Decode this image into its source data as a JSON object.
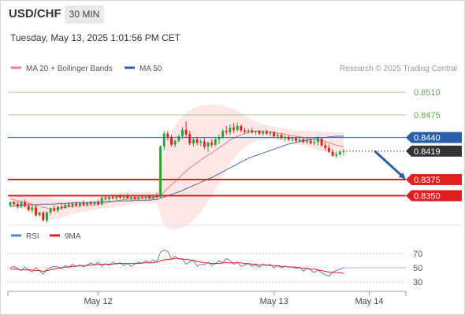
{
  "header": {
    "symbol": "USD/CHF",
    "timeframe": "30 MIN",
    "datetime": "Tuesday, May 13, 2025 1:01:56 PM CET"
  },
  "colors": {
    "bull": "#2e9e3a",
    "bear": "#e02020",
    "ma20": "#f08080",
    "band_fill": "#fde2e2",
    "ma50": "#4a6fa5",
    "rsi": "#5b7fd6",
    "rsi_ma": "#e02020",
    "target": "#6aa84f",
    "support": "#e02020",
    "pivot": "#2c5fa8",
    "arrow": "#2c5fa8",
    "price_box": "#333333"
  },
  "chart_data": [
    {
      "type": "candlestick",
      "legend": [
        {
          "name": "MA 20 + Bollinger Bands",
          "color": "#f08080"
        },
        {
          "name": "MA 50",
          "color": "#2c5fa8"
        }
      ],
      "watermark": "Research © 2025 Trading Central",
      "ylim": [
        0.8308,
        0.8537
      ],
      "x_ticks": [
        {
          "label": "May 12",
          "index": 24
        },
        {
          "label": "May 13",
          "index": 72
        },
        {
          "label": "May 14",
          "index": 98
        }
      ],
      "x_range": [
        0,
        108
      ],
      "levels": [
        {
          "value": 0.851,
          "label": "0.8510",
          "kind": "target"
        },
        {
          "value": 0.8475,
          "label": "0.8475",
          "kind": "target"
        },
        {
          "value": 0.844,
          "label": "0.8440",
          "kind": "pivot"
        },
        {
          "value": 0.8375,
          "label": "0.8375",
          "kind": "support"
        },
        {
          "value": 0.835,
          "label": "0.8350",
          "kind": "support"
        }
      ],
      "last_price": {
        "value": 0.8419,
        "label": "0.8419"
      },
      "forecast_arrow": {
        "from_index": 99.5,
        "from_value": 0.8419,
        "to_index": 108,
        "to_value": 0.8375
      },
      "candles": [
        [
          0.8335,
          0.8341,
          0.8332,
          0.834
        ],
        [
          0.834,
          0.8342,
          0.8335,
          0.8337
        ],
        [
          0.8337,
          0.8341,
          0.833,
          0.8333
        ],
        [
          0.8333,
          0.8342,
          0.8331,
          0.834
        ],
        [
          0.834,
          0.8344,
          0.8332,
          0.8334
        ],
        [
          0.8334,
          0.8338,
          0.8326,
          0.8328
        ],
        [
          0.8328,
          0.8336,
          0.8324,
          0.8332
        ],
        [
          0.8332,
          0.8336,
          0.8318,
          0.832
        ],
        [
          0.832,
          0.8325,
          0.8318,
          0.8324
        ],
        [
          0.8324,
          0.8326,
          0.831,
          0.8312
        ],
        [
          0.8312,
          0.8326,
          0.8308,
          0.8324
        ],
        [
          0.8324,
          0.8332,
          0.832,
          0.833
        ],
        [
          0.833,
          0.8335,
          0.8325,
          0.8327
        ],
        [
          0.8327,
          0.8335,
          0.8324,
          0.8333
        ],
        [
          0.8333,
          0.8338,
          0.8328,
          0.8331
        ],
        [
          0.8331,
          0.8338,
          0.833,
          0.8336
        ],
        [
          0.8336,
          0.834,
          0.8332,
          0.8334
        ],
        [
          0.8334,
          0.834,
          0.8331,
          0.8338
        ],
        [
          0.8338,
          0.8341,
          0.8333,
          0.8335
        ],
        [
          0.8335,
          0.8341,
          0.8332,
          0.8339
        ],
        [
          0.8339,
          0.8343,
          0.8334,
          0.8336
        ],
        [
          0.8336,
          0.8341,
          0.8333,
          0.8339
        ],
        [
          0.8339,
          0.8342,
          0.8336,
          0.8337
        ],
        [
          0.8337,
          0.8342,
          0.8335,
          0.834
        ],
        [
          0.834,
          0.8343,
          0.8335,
          0.8337
        ],
        [
          0.8337,
          0.835,
          0.8335,
          0.8347
        ],
        [
          0.8347,
          0.8351,
          0.8343,
          0.8345
        ],
        [
          0.8345,
          0.835,
          0.8342,
          0.8348
        ],
        [
          0.8348,
          0.8351,
          0.8344,
          0.8346
        ],
        [
          0.8346,
          0.8351,
          0.8343,
          0.8349
        ],
        [
          0.8349,
          0.8352,
          0.8345,
          0.8347
        ],
        [
          0.8347,
          0.8352,
          0.8344,
          0.835
        ],
        [
          0.835,
          0.8353,
          0.8345,
          0.8346
        ],
        [
          0.8346,
          0.8351,
          0.8342,
          0.8348
        ],
        [
          0.8348,
          0.8351,
          0.8344,
          0.8345
        ],
        [
          0.8345,
          0.835,
          0.8343,
          0.8348
        ],
        [
          0.8348,
          0.8351,
          0.8345,
          0.8347
        ],
        [
          0.8347,
          0.8351,
          0.8344,
          0.8349
        ],
        [
          0.8349,
          0.8352,
          0.8344,
          0.8346
        ],
        [
          0.8346,
          0.8352,
          0.8344,
          0.835
        ],
        [
          0.835,
          0.8354,
          0.8346,
          0.8348
        ],
        [
          0.8348,
          0.8428,
          0.8346,
          0.8426
        ],
        [
          0.8426,
          0.845,
          0.842,
          0.8446
        ],
        [
          0.8446,
          0.845,
          0.8435,
          0.8441
        ],
        [
          0.8441,
          0.8444,
          0.8426,
          0.8429
        ],
        [
          0.8429,
          0.8437,
          0.8425,
          0.8435
        ],
        [
          0.8435,
          0.8445,
          0.8432,
          0.8442
        ],
        [
          0.8442,
          0.8456,
          0.8438,
          0.8452
        ],
        [
          0.8452,
          0.8465,
          0.844,
          0.8445
        ],
        [
          0.8445,
          0.845,
          0.8428,
          0.8431
        ],
        [
          0.8431,
          0.844,
          0.8426,
          0.8437
        ],
        [
          0.8437,
          0.8441,
          0.8428,
          0.8432
        ],
        [
          0.8432,
          0.8437,
          0.8426,
          0.8434
        ],
        [
          0.8434,
          0.844,
          0.8422,
          0.8426
        ],
        [
          0.8426,
          0.8434,
          0.8418,
          0.8432
        ],
        [
          0.8432,
          0.8437,
          0.8425,
          0.8429
        ],
        [
          0.8429,
          0.844,
          0.8426,
          0.8437
        ],
        [
          0.8437,
          0.8445,
          0.843,
          0.8441
        ],
        [
          0.8441,
          0.8453,
          0.8438,
          0.845
        ],
        [
          0.845,
          0.8458,
          0.8444,
          0.8448
        ],
        [
          0.8448,
          0.846,
          0.8444,
          0.8455
        ],
        [
          0.8455,
          0.8462,
          0.8447,
          0.8452
        ],
        [
          0.8452,
          0.8463,
          0.8449,
          0.8458
        ],
        [
          0.8458,
          0.846,
          0.8448,
          0.8451
        ],
        [
          0.8451,
          0.8455,
          0.8446,
          0.8449
        ],
        [
          0.8449,
          0.8453,
          0.8446,
          0.8451
        ],
        [
          0.8451,
          0.8455,
          0.8446,
          0.8448
        ],
        [
          0.8448,
          0.8451,
          0.8444,
          0.845
        ],
        [
          0.845,
          0.8452,
          0.8444,
          0.8446
        ],
        [
          0.8446,
          0.8451,
          0.8443,
          0.8449
        ],
        [
          0.8449,
          0.8452,
          0.8444,
          0.8446
        ],
        [
          0.8446,
          0.845,
          0.8442,
          0.8448
        ],
        [
          0.8448,
          0.845,
          0.844,
          0.8442
        ],
        [
          0.8442,
          0.8447,
          0.8438,
          0.8444
        ],
        [
          0.8444,
          0.8446,
          0.8437,
          0.8439
        ],
        [
          0.8439,
          0.8443,
          0.8434,
          0.8441
        ],
        [
          0.8441,
          0.8443,
          0.8435,
          0.8437
        ],
        [
          0.8437,
          0.8441,
          0.8434,
          0.8439
        ],
        [
          0.8439,
          0.8441,
          0.8433,
          0.8435
        ],
        [
          0.8435,
          0.844,
          0.8432,
          0.8437
        ],
        [
          0.8437,
          0.844,
          0.8431,
          0.8433
        ],
        [
          0.8433,
          0.8438,
          0.843,
          0.8435
        ],
        [
          0.8435,
          0.8438,
          0.8429,
          0.8431
        ],
        [
          0.8431,
          0.8436,
          0.8428,
          0.8433
        ],
        [
          0.8433,
          0.8442,
          0.8428,
          0.8438
        ],
        [
          0.8438,
          0.844,
          0.8426,
          0.8428
        ],
        [
          0.8428,
          0.8432,
          0.842,
          0.8424
        ],
        [
          0.8424,
          0.8429,
          0.8416,
          0.8418
        ],
        [
          0.8418,
          0.8422,
          0.841,
          0.8412
        ],
        [
          0.8412,
          0.8418,
          0.8408,
          0.8414
        ],
        [
          0.8414,
          0.842,
          0.8412,
          0.8418
        ],
        [
          0.8418,
          0.8422,
          0.8413,
          0.8419
        ]
      ],
      "ma20": [
        0.8345,
        0.8344,
        0.8342,
        0.8341,
        0.834,
        0.8339,
        0.8337,
        0.8335,
        0.8334,
        0.8332,
        0.8331,
        0.833,
        0.833,
        0.833,
        0.8331,
        0.8332,
        0.8333,
        0.8333,
        0.8334,
        0.8334,
        0.8335,
        0.8335,
        0.8335,
        0.8336,
        0.8337,
        0.8338,
        0.8339,
        0.834,
        0.8341,
        0.8342,
        0.8343,
        0.8344,
        0.8344,
        0.8345,
        0.8345,
        0.8346,
        0.8346,
        0.8346,
        0.8347,
        0.8347,
        0.8347,
        0.835,
        0.8356,
        0.8362,
        0.8367,
        0.8372,
        0.8377,
        0.8383,
        0.8388,
        0.8393,
        0.8397,
        0.8401,
        0.8405,
        0.8409,
        0.8413,
        0.8416,
        0.842,
        0.8424,
        0.8428,
        0.8432,
        0.8436,
        0.8439,
        0.8442,
        0.8444,
        0.8446,
        0.8448,
        0.8449,
        0.845,
        0.845,
        0.845,
        0.845,
        0.8449,
        0.8448,
        0.8447,
        0.8446,
        0.8445,
        0.8444,
        0.8443,
        0.8442,
        0.8441,
        0.844,
        0.8439,
        0.8438,
        0.8437,
        0.8436,
        0.8435,
        0.8434,
        0.8432,
        0.843,
        0.8428,
        0.8427,
        0.8426
      ],
      "bb_upper": [
        0.8352,
        0.8351,
        0.835,
        0.835,
        0.835,
        0.8351,
        0.8351,
        0.8351,
        0.835,
        0.835,
        0.8349,
        0.8348,
        0.8346,
        0.8345,
        0.8344,
        0.8344,
        0.8344,
        0.8344,
        0.8343,
        0.8343,
        0.8342,
        0.8342,
        0.8342,
        0.8343,
        0.8345,
        0.8348,
        0.835,
        0.8352,
        0.8353,
        0.8354,
        0.8355,
        0.8355,
        0.8356,
        0.8356,
        0.8356,
        0.8356,
        0.8356,
        0.8356,
        0.8356,
        0.8356,
        0.8356,
        0.8385,
        0.8415,
        0.8435,
        0.8448,
        0.8458,
        0.8466,
        0.8473,
        0.8478,
        0.8482,
        0.8485,
        0.8487,
        0.8489,
        0.849,
        0.8491,
        0.8491,
        0.8491,
        0.849,
        0.8489,
        0.8488,
        0.8486,
        0.8484,
        0.8481,
        0.8478,
        0.8475,
        0.8471,
        0.8468,
        0.8465,
        0.8463,
        0.8461,
        0.8459,
        0.8458,
        0.8457,
        0.8456,
        0.8455,
        0.8454,
        0.8453,
        0.8452,
        0.8451,
        0.8451,
        0.845,
        0.845,
        0.845,
        0.845,
        0.845,
        0.8449,
        0.8449,
        0.8448,
        0.8448,
        0.8448,
        0.8448,
        0.8448
      ],
      "bb_lower": [
        0.8336,
        0.8335,
        0.8333,
        0.8331,
        0.8329,
        0.8326,
        0.8323,
        0.832,
        0.8318,
        0.8316,
        0.8314,
        0.8313,
        0.8313,
        0.8314,
        0.8316,
        0.8318,
        0.832,
        0.8321,
        0.8323,
        0.8324,
        0.8325,
        0.8326,
        0.8327,
        0.8328,
        0.8329,
        0.833,
        0.833,
        0.8331,
        0.8332,
        0.8333,
        0.8333,
        0.8334,
        0.8335,
        0.8336,
        0.8337,
        0.8337,
        0.8338,
        0.8338,
        0.8338,
        0.8338,
        0.8338,
        0.832,
        0.8306,
        0.83,
        0.8298,
        0.8298,
        0.8299,
        0.8301,
        0.8303,
        0.8307,
        0.8312,
        0.8318,
        0.8325,
        0.8333,
        0.8341,
        0.835,
        0.8359,
        0.8369,
        0.8379,
        0.8389,
        0.8399,
        0.8407,
        0.8414,
        0.842,
        0.8425,
        0.8429,
        0.8432,
        0.8434,
        0.8435,
        0.8436,
        0.8437,
        0.8437,
        0.8437,
        0.8436,
        0.8435,
        0.8434,
        0.8433,
        0.8432,
        0.8431,
        0.843,
        0.8428,
        0.8426,
        0.8424,
        0.8422,
        0.842,
        0.8419,
        0.8418,
        0.8417,
        0.8414,
        0.841,
        0.8408,
        0.8406
      ],
      "ma50": [
        0.8333,
        0.8334,
        0.8335,
        0.8335,
        0.8336,
        0.8336,
        0.8336,
        0.8336,
        0.8337,
        0.8337,
        0.8337,
        0.8337,
        0.8337,
        0.8338,
        0.8338,
        0.8338,
        0.8338,
        0.8339,
        0.8339,
        0.8339,
        0.8339,
        0.8339,
        0.834,
        0.834,
        0.834,
        0.8341,
        0.8341,
        0.8341,
        0.8341,
        0.8342,
        0.8342,
        0.8342,
        0.8342,
        0.8342,
        0.8343,
        0.8343,
        0.8343,
        0.8343,
        0.8343,
        0.8344,
        0.8344,
        0.8346,
        0.8348,
        0.835,
        0.8352,
        0.8354,
        0.8356,
        0.8358,
        0.8361,
        0.8363,
        0.8366,
        0.8368,
        0.8371,
        0.8373,
        0.8376,
        0.8378,
        0.8381,
        0.8384,
        0.8387,
        0.839,
        0.8393,
        0.8396,
        0.8399,
        0.8402,
        0.8405,
        0.8408,
        0.841,
        0.8412,
        0.8414,
        0.8416,
        0.8418,
        0.842,
        0.8422,
        0.8424,
        0.8426,
        0.8428,
        0.843,
        0.8431,
        0.8432,
        0.8434,
        0.8435,
        0.8436,
        0.8437,
        0.8438,
        0.8439,
        0.844,
        0.844,
        0.8441,
        0.8441,
        0.8442,
        0.8442,
        0.8442
      ]
    },
    {
      "type": "line",
      "legend": [
        {
          "name": "RSI",
          "color": "#5b7fd6"
        },
        {
          "name": "9MA",
          "color": "#e02020"
        }
      ],
      "ylim": [
        20,
        80
      ],
      "y_ticks": [
        70,
        50,
        30
      ],
      "series": [
        {
          "name": "RSI",
          "values": [
            50,
            52,
            49,
            46,
            51,
            47,
            44,
            50,
            46,
            41,
            48,
            50,
            52,
            51,
            49,
            53,
            51,
            55,
            52,
            54,
            51,
            54,
            57,
            54,
            58,
            52,
            56,
            53,
            58,
            55,
            57,
            53,
            56,
            52,
            55,
            58,
            56,
            60,
            57,
            61,
            58,
            72,
            75,
            73,
            63,
            66,
            62,
            63,
            55,
            58,
            61,
            52,
            55,
            54,
            58,
            53,
            56,
            60,
            57,
            63,
            60,
            55,
            58,
            52,
            54,
            56,
            52,
            54,
            51,
            55,
            53,
            55,
            50,
            53,
            50,
            52,
            51,
            51,
            49,
            51,
            45,
            50,
            47,
            43,
            47,
            43,
            40,
            38,
            44,
            46,
            48,
            50
          ]
        },
        {
          "name": "9MA",
          "values": [
            48,
            48,
            48,
            47,
            47,
            47,
            47,
            46,
            46,
            45,
            46,
            47,
            48,
            49,
            50,
            51,
            51,
            52,
            52,
            53,
            53,
            53,
            54,
            54,
            55,
            55,
            55,
            55,
            55,
            56,
            56,
            56,
            56,
            56,
            56,
            56,
            57,
            57,
            57,
            57,
            58,
            60,
            61,
            62,
            62,
            63,
            63,
            62,
            62,
            61,
            60,
            59,
            58,
            57,
            57,
            56,
            56,
            56,
            57,
            57,
            57,
            57,
            57,
            57,
            56,
            56,
            55,
            55,
            54,
            54,
            54,
            53,
            53,
            53,
            52,
            52,
            51,
            51,
            51,
            50,
            49,
            49,
            48,
            48,
            47,
            46,
            45,
            44,
            43,
            43,
            43,
            42
          ]
        }
      ]
    }
  ]
}
